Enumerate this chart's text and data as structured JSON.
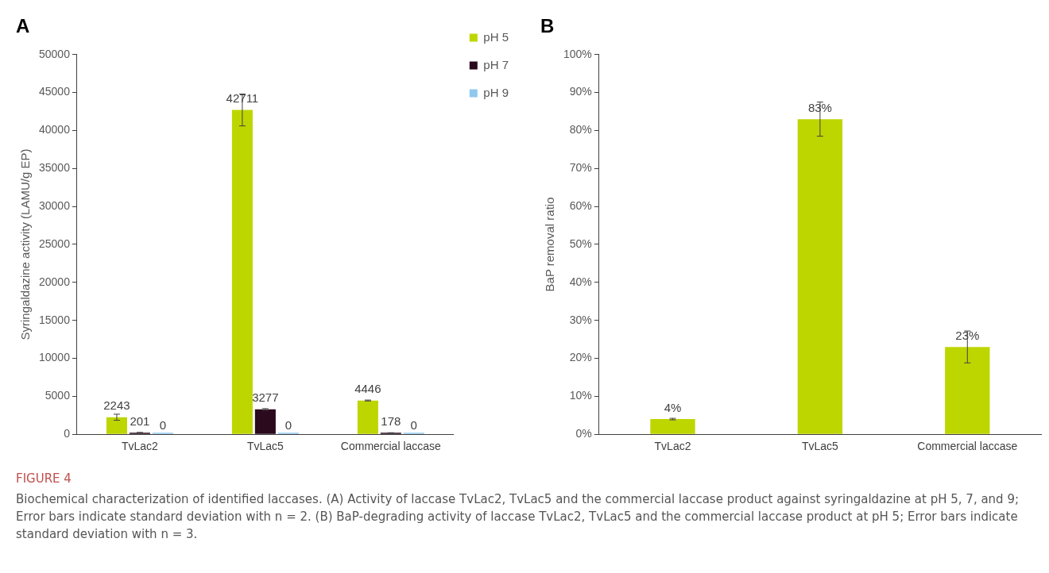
{
  "chart_data": [
    {
      "type": "bar",
      "title": "A",
      "ylabel": "Syringaldazine activity (LAMU/g EP)",
      "categories": [
        "TvLac2",
        "TvLac5",
        "Commercial laccase"
      ],
      "series": [
        {
          "name": "pH 5",
          "color": "#bed600",
          "values": [
            2243,
            42711,
            4446
          ],
          "errors": [
            400,
            2100,
            60
          ]
        },
        {
          "name": "pH 7",
          "color": "#2b0a1d",
          "values": [
            201,
            3277,
            178
          ],
          "errors": [
            50,
            100,
            30
          ]
        },
        {
          "name": "pH 9",
          "color": "#8fc9ee",
          "values": [
            0,
            0,
            0
          ]
        }
      ],
      "ylim": [
        0,
        50000
      ],
      "yticks": [
        0,
        5000,
        10000,
        15000,
        20000,
        25000,
        30000,
        35000,
        40000,
        45000,
        50000
      ],
      "grid": false,
      "legend": "top right",
      "data_labels": true
    },
    {
      "type": "bar",
      "title": "B",
      "ylabel": "BaP removal ratio",
      "categories": [
        "TvLac2",
        "TvLac5",
        "Commercial laccase"
      ],
      "series": [
        {
          "color": "#bed600",
          "values": [
            4,
            83,
            23
          ],
          "value_labels": [
            "4%",
            "83%",
            "23%"
          ],
          "errors": [
            0.2,
            4.5,
            4.2
          ]
        }
      ],
      "ylim": [
        0,
        100
      ],
      "yticks": [
        {
          "value": 0,
          "label": "0%"
        },
        {
          "value": 10,
          "label": "10%"
        },
        {
          "value": 20,
          "label": "20%"
        },
        {
          "value": 30,
          "label": "30%"
        },
        {
          "value": 40,
          "label": "40%"
        },
        {
          "value": 50,
          "label": "50%"
        },
        {
          "value": 60,
          "label": "60%"
        },
        {
          "value": 70,
          "label": "70%"
        },
        {
          "value": 80,
          "label": "80%"
        },
        {
          "value": 90,
          "label": "90%"
        },
        {
          "value": 100,
          "label": "100%"
        }
      ],
      "grid": false,
      "legend": false,
      "annotations": [
        "FIGURE 4",
        "Biochemical characterization of identified laccases. (A) Activity of laccase TvLac2, TvLac5 and the commercial laccase product against syringaldazine at pH 5, 7, and 9; Error bars indicate standard deviation with n = 2. (B) BaP-degrading activity of laccase TvLac2, TvLac5 and the commercial laccase product at pH 5; Error bars indicate standard deviation with n = 3."
      ]
    }
  ]
}
